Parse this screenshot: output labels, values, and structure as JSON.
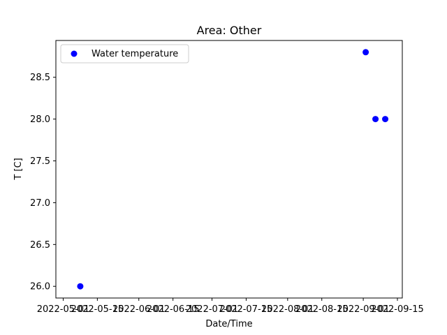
{
  "chart_data": {
    "type": "scatter",
    "title": "Area: Other",
    "xlabel": "Date/Time",
    "ylabel": "T [C]",
    "x_tick_labels": [
      "2022-05-01",
      "2022-05-15",
      "2022-06-01",
      "2022-06-15",
      "2022-07-01",
      "2022-07-15",
      "2022-08-01",
      "2022-08-15",
      "2022-09-01",
      "2022-09-15"
    ],
    "y_tick_labels": [
      "26.0",
      "26.5",
      "27.0",
      "27.5",
      "28.0",
      "28.5"
    ],
    "xlim": [
      "2022-04-28",
      "2022-09-17"
    ],
    "ylim": [
      25.86,
      28.94
    ],
    "legend_position": "top-left",
    "grid": false,
    "series": [
      {
        "name": "Water temperature",
        "color": "#0000ff",
        "x": [
          "2022-05-08",
          "2022-09-02",
          "2022-09-06",
          "2022-09-10"
        ],
        "y": [
          26.0,
          28.8,
          28.0,
          28.0
        ]
      }
    ]
  }
}
